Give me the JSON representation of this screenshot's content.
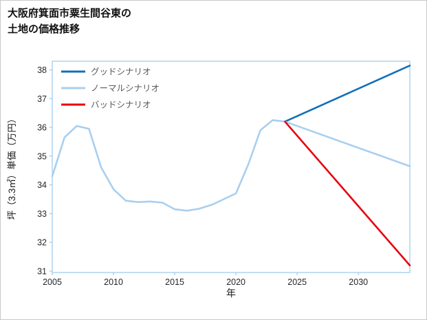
{
  "title": "大阪府箕面市粟生間谷東の\n土地の価格推移",
  "chart_data": {
    "type": "line",
    "title": "大阪府箕面市粟生間谷東の 土地の価格推移",
    "xlabel": "年",
    "ylabel": "坪（3.3㎡）単価（万円）",
    "xlim": [
      2005,
      2034.2
    ],
    "ylim": [
      30.95,
      38.3
    ],
    "xticks": [
      2005,
      2010,
      2015,
      2020,
      2025,
      2030
    ],
    "yticks": [
      31,
      32,
      33,
      34,
      35,
      36,
      37,
      38
    ],
    "grid": false,
    "legend_position": "upper-left",
    "frame_color": "#aed3f0",
    "tick_label_color": "#262626",
    "axis_label_color": "#1a1a1a",
    "legend_text_color": "#595959",
    "series": [
      {
        "name": "グッドシナリオ",
        "color": "#1170b8",
        "points": [
          [
            2024,
            36.2
          ],
          [
            2034.2,
            38.15
          ]
        ]
      },
      {
        "name": "ノーマルシナリオ",
        "color": "#a9cfee",
        "points": [
          [
            2005,
            34.3
          ],
          [
            2006,
            35.65
          ],
          [
            2007,
            36.05
          ],
          [
            2008,
            35.95
          ],
          [
            2009,
            34.6
          ],
          [
            2010,
            33.85
          ],
          [
            2011,
            33.45
          ],
          [
            2012,
            33.4
          ],
          [
            2013,
            33.42
          ],
          [
            2014,
            33.38
          ],
          [
            2015,
            33.15
          ],
          [
            2016,
            33.1
          ],
          [
            2017,
            33.17
          ],
          [
            2018,
            33.3
          ],
          [
            2019,
            33.5
          ],
          [
            2020,
            33.7
          ],
          [
            2021,
            34.7
          ],
          [
            2022,
            35.9
          ],
          [
            2023,
            36.25
          ],
          [
            2024,
            36.2
          ],
          [
            2034.2,
            34.65
          ]
        ]
      },
      {
        "name": "バッドシナリオ",
        "color": "#e8000b",
        "points": [
          [
            2024,
            36.2
          ],
          [
            2034.2,
            31.2
          ]
        ]
      }
    ]
  }
}
